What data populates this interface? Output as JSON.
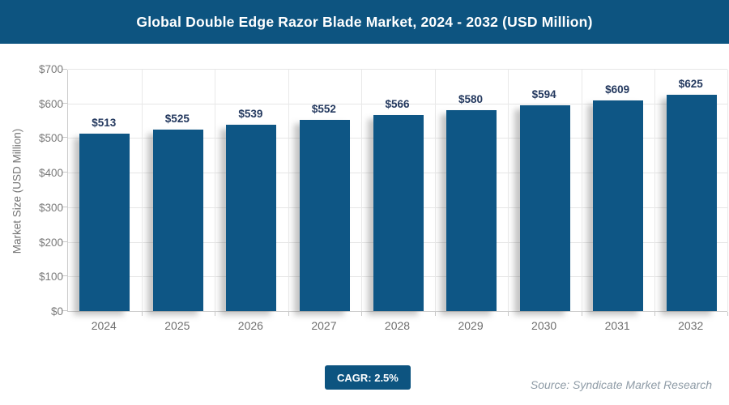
{
  "header": {
    "title": "Global Double Edge Razor Blade Market, 2024 - 2032 (USD Million)"
  },
  "chart_data": {
    "type": "bar",
    "title": "Global Double Edge Razor Blade Market, 2024 - 2032 (USD Million)",
    "categories": [
      "2024",
      "2025",
      "2026",
      "2027",
      "2028",
      "2029",
      "2030",
      "2031",
      "2032"
    ],
    "values": [
      513,
      525,
      539,
      552,
      566,
      580,
      594,
      609,
      625
    ],
    "value_labels": [
      "$513",
      "$525",
      "$539",
      "$552",
      "$566",
      "$580",
      "$594",
      "$609",
      "$625"
    ],
    "xlabel": "",
    "ylabel": "Market Size (USD Million)",
    "ylim": [
      0,
      700
    ],
    "ytick_step": 100,
    "ytick_labels": [
      "$0",
      "$100",
      "$200",
      "$300",
      "$400",
      "$500",
      "$600",
      "$700"
    ],
    "grid": true,
    "legend": false
  },
  "footer": {
    "cagr_label": "CAGR: 2.5%",
    "source": "Source: Syndicate Market Research"
  },
  "colors": {
    "header_bg": "#0d5480",
    "bar": "#0e5685",
    "value_label": "#24395f",
    "gridline": "#e6e6e6",
    "axis_line": "#cccccc",
    "tick_text": "#7a7a7a",
    "source_text": "#8e9ba6"
  }
}
